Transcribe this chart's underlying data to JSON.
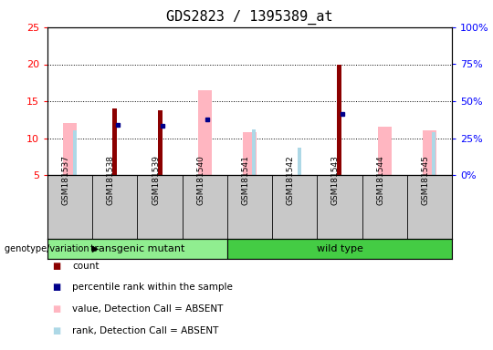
{
  "title": "GDS2823 / 1395389_at",
  "samples": [
    "GSM181537",
    "GSM181538",
    "GSM181539",
    "GSM181540",
    "GSM181541",
    "GSM181542",
    "GSM181543",
    "GSM181544",
    "GSM181545"
  ],
  "ylim_left": [
    5,
    25
  ],
  "ylim_right": [
    0,
    100
  ],
  "yticks_left": [
    5,
    10,
    15,
    20,
    25
  ],
  "yticks_right": [
    0,
    25,
    50,
    75,
    100
  ],
  "ytick_labels_right": [
    "0%",
    "25%",
    "50%",
    "75%",
    "100%"
  ],
  "count_values": [
    null,
    14.0,
    13.8,
    null,
    null,
    null,
    20.0,
    null,
    null
  ],
  "percentile_values": [
    null,
    11.8,
    11.7,
    12.5,
    null,
    null,
    13.3,
    null,
    null
  ],
  "absent_value_values": [
    12.0,
    null,
    null,
    16.5,
    10.8,
    null,
    null,
    11.5,
    11.0
  ],
  "absent_rank_values": [
    11.0,
    null,
    null,
    null,
    11.2,
    8.7,
    null,
    null,
    10.8
  ],
  "color_count": "#8B0000",
  "color_percentile": "#00008B",
  "color_absent_value": "#FFB6C1",
  "color_absent_rank": "#ADD8E6",
  "background_color": "#FFFFFF",
  "plot_bg_color": "#FFFFFF",
  "transgenic_color": "#90EE90",
  "wildtype_color": "#44CC44",
  "label_row_color": "#C8C8C8",
  "title_fontsize": 11,
  "tick_fontsize": 8,
  "legend_fontsize": 7.5,
  "sample_fontsize": 6.5
}
